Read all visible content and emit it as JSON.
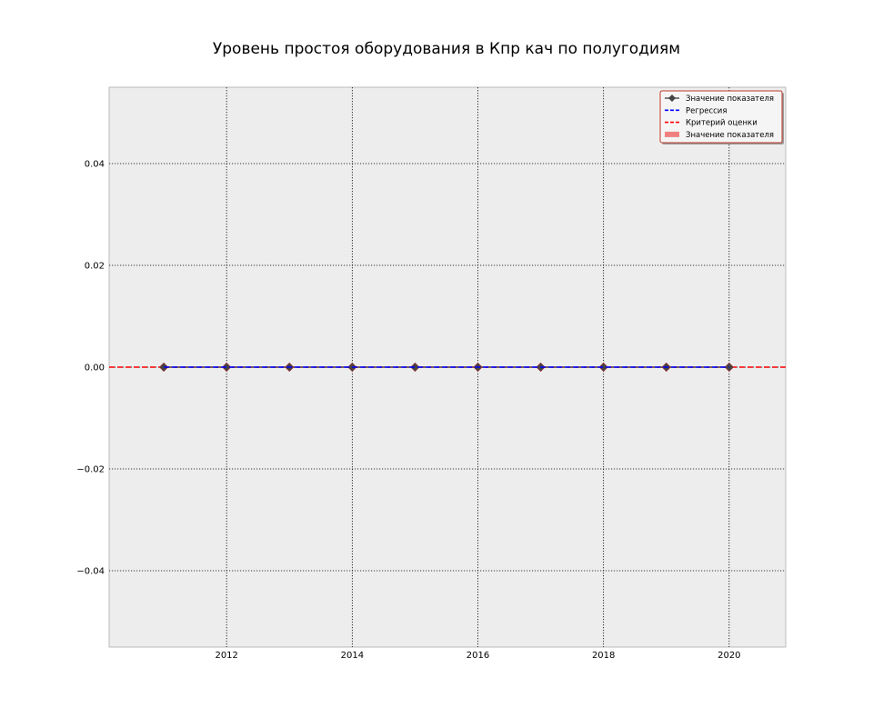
{
  "chart_data": {
    "type": "line",
    "title": "Уровень простоя оборудования в Кпр кач по полугодиям",
    "xlabel": "",
    "ylabel": "",
    "xlim": [
      2010.13,
      2020.9
    ],
    "ylim": [
      -0.055,
      0.055
    ],
    "x_ticks": [
      2012,
      2014,
      2016,
      2018,
      2020
    ],
    "y_ticks": [
      -0.04,
      -0.02,
      0.0,
      0.02,
      0.04
    ],
    "x_tick_labels": [
      "2012",
      "2014",
      "2016",
      "2018",
      "2020"
    ],
    "y_tick_labels": [
      "−0.04",
      "−0.02",
      "0.00",
      "0.02",
      "0.04"
    ],
    "grid": true,
    "legend_position": "top-right",
    "series": [
      {
        "name": "Значение показателя",
        "kind": "line-marker",
        "marker": "diamond",
        "color": "#555555",
        "x": [
          2011,
          2012,
          2013,
          2014,
          2015,
          2016,
          2017,
          2018,
          2019,
          2020
        ],
        "y": [
          0,
          0,
          0,
          0,
          0,
          0,
          0,
          0,
          0,
          0
        ]
      },
      {
        "name": "Регрессия",
        "kind": "dashed-line",
        "color": "#0000ff",
        "x": [
          2011,
          2020
        ],
        "y": [
          0,
          0
        ]
      },
      {
        "name": "Критерий оценки",
        "kind": "dashed-line",
        "color": "#ff0000",
        "y": 0
      },
      {
        "name": "Значение показателя",
        "kind": "band",
        "color": "#f08080",
        "x": [
          2011,
          2020
        ],
        "y_low": [
          0,
          0
        ],
        "y_high": [
          0,
          0
        ]
      }
    ],
    "colors": {
      "background": "#ededed",
      "grid": "#000000",
      "legend_border": "#c0392b"
    }
  }
}
